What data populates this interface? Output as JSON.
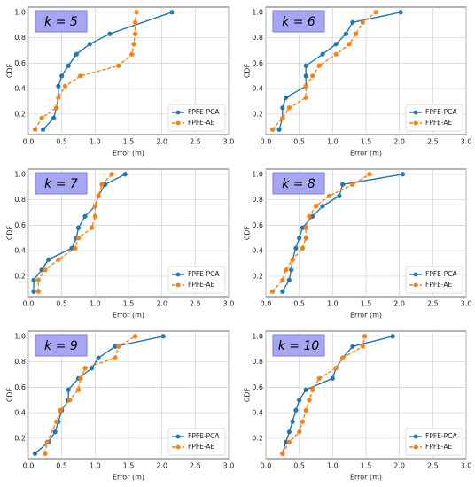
{
  "chart_data": [
    {
      "type": "line",
      "annotation": "k = 5",
      "xlabel": "Error (m)",
      "ylabel": "CDF",
      "xlim": [
        0,
        3.0
      ],
      "ylim": [
        0.04,
        1.04
      ],
      "xticks": [
        {
          "value": 0,
          "label": "0.0"
        },
        0.5,
        {
          "value": 1,
          "label": "1.0"
        },
        1.5,
        {
          "value": 2,
          "label": "2.0"
        },
        2.5,
        {
          "value": 3,
          "label": "3.0"
        }
      ],
      "yticks": [
        0.2,
        0.4,
        0.6,
        0.8,
        {
          "value": 1,
          "label": "1.0"
        }
      ],
      "grid": true,
      "legend": "lower right",
      "series": [
        {
          "name": "FPFE-PCA",
          "color": "#1f77b4",
          "linestyle": "solid",
          "x": [
            0.22,
            0.38,
            0.42,
            0.45,
            0.45,
            0.5,
            0.6,
            0.72,
            0.92,
            1.22,
            2.15
          ],
          "values": [
            0.08,
            0.17,
            0.25,
            0.33,
            0.42,
            0.5,
            0.58,
            0.67,
            0.75,
            0.83,
            1.0
          ]
        },
        {
          "name": "FPFE-AE",
          "color": "#ff7f0e",
          "linestyle": "dashed",
          "x": [
            0.1,
            0.2,
            0.42,
            0.45,
            0.55,
            0.78,
            1.35,
            1.55,
            1.58,
            1.6,
            1.6,
            1.62
          ],
          "values": [
            0.08,
            0.17,
            0.25,
            0.33,
            0.42,
            0.5,
            0.58,
            0.67,
            0.75,
            0.83,
            0.92,
            1.0
          ]
        }
      ]
    },
    {
      "type": "line",
      "annotation": "k = 6",
      "xlabel": "Error (m)",
      "ylabel": "CDF",
      "xlim": [
        0,
        3.0
      ],
      "ylim": [
        0.04,
        1.04
      ],
      "xticks": [
        {
          "value": 0,
          "label": "0.0"
        },
        0.5,
        {
          "value": 1,
          "label": "1.0"
        },
        1.5,
        {
          "value": 2,
          "label": "2.0"
        },
        2.5,
        {
          "value": 3,
          "label": "3.0"
        }
      ],
      "yticks": [
        0.2,
        0.4,
        0.6,
        0.8,
        {
          "value": 1,
          "label": "1.0"
        }
      ],
      "grid": true,
      "legend": "lower right",
      "series": [
        {
          "name": "FPFE-PCA",
          "color": "#1f77b4",
          "linestyle": "solid",
          "x": [
            0.2,
            0.25,
            0.25,
            0.3,
            0.6,
            0.6,
            0.6,
            0.85,
            1.05,
            1.2,
            1.3,
            2.02
          ],
          "values": [
            0.08,
            0.17,
            0.25,
            0.33,
            0.42,
            0.5,
            0.58,
            0.67,
            0.75,
            0.83,
            0.92,
            1.0
          ]
        },
        {
          "name": "FPFE-AE",
          "color": "#ff7f0e",
          "linestyle": "dashed",
          "x": [
            0.1,
            0.25,
            0.35,
            0.6,
            0.6,
            0.7,
            0.8,
            1.05,
            1.25,
            1.35,
            1.45,
            1.65
          ],
          "values": [
            0.08,
            0.17,
            0.25,
            0.33,
            0.42,
            0.5,
            0.58,
            0.67,
            0.75,
            0.83,
            0.92,
            1.0
          ]
        }
      ]
    },
    {
      "type": "line",
      "annotation": "k = 7",
      "xlabel": "Error (m)",
      "ylabel": "CDF",
      "xlim": [
        0,
        3.0
      ],
      "ylim": [
        0.04,
        1.04
      ],
      "xticks": [
        {
          "value": 0,
          "label": "0.0"
        },
        0.5,
        {
          "value": 1,
          "label": "1.0"
        },
        1.5,
        {
          "value": 2,
          "label": "2.0"
        },
        2.5,
        {
          "value": 3,
          "label": "3.0"
        }
      ],
      "yticks": [
        0.2,
        0.4,
        0.6,
        0.8,
        {
          "value": 1,
          "label": "1.0"
        }
      ],
      "grid": true,
      "legend": "lower right",
      "series": [
        {
          "name": "FPFE-PCA",
          "color": "#1f77b4",
          "linestyle": "solid",
          "x": [
            0.08,
            0.08,
            0.2,
            0.3,
            0.65,
            0.72,
            0.75,
            0.85,
            1.0,
            1.05,
            1.15,
            1.45
          ],
          "values": [
            0.08,
            0.17,
            0.25,
            0.33,
            0.42,
            0.5,
            0.58,
            0.67,
            0.75,
            0.83,
            0.92,
            1.0
          ]
        },
        {
          "name": "FPFE-AE",
          "color": "#ff7f0e",
          "linestyle": "dashed",
          "x": [
            0.15,
            0.15,
            0.25,
            0.45,
            0.7,
            0.75,
            0.95,
            1.0,
            1.0,
            1.05,
            1.1,
            1.25
          ],
          "values": [
            0.08,
            0.17,
            0.25,
            0.33,
            0.42,
            0.5,
            0.58,
            0.67,
            0.75,
            0.83,
            0.92,
            1.0
          ]
        }
      ]
    },
    {
      "type": "line",
      "annotation": "k = 8",
      "xlabel": "Error (m)",
      "ylabel": "CDF",
      "xlim": [
        0,
        3.0
      ],
      "ylim": [
        0.04,
        1.04
      ],
      "xticks": [
        {
          "value": 0,
          "label": "0.0"
        },
        0.5,
        {
          "value": 1,
          "label": "1.0"
        },
        1.5,
        {
          "value": 2,
          "label": "2.0"
        },
        2.5,
        {
          "value": 3,
          "label": "3.0"
        }
      ],
      "yticks": [
        0.2,
        0.4,
        0.6,
        0.8,
        {
          "value": 1,
          "label": "1.0"
        }
      ],
      "grid": true,
      "legend": "lower right",
      "series": [
        {
          "name": "FPFE-PCA",
          "color": "#1f77b4",
          "linestyle": "solid",
          "x": [
            0.25,
            0.35,
            0.38,
            0.4,
            0.45,
            0.5,
            0.55,
            0.7,
            0.85,
            1.1,
            1.15,
            2.05
          ],
          "values": [
            0.08,
            0.17,
            0.25,
            0.33,
            0.42,
            0.5,
            0.58,
            0.67,
            0.75,
            0.83,
            0.92,
            1.0
          ]
        },
        {
          "name": "FPFE-AE",
          "color": "#ff7f0e",
          "linestyle": "dashed",
          "x": [
            0.1,
            0.25,
            0.3,
            0.4,
            0.55,
            0.6,
            0.6,
            0.65,
            0.75,
            0.95,
            1.3,
            1.55
          ],
          "values": [
            0.08,
            0.17,
            0.25,
            0.33,
            0.42,
            0.5,
            0.58,
            0.67,
            0.75,
            0.83,
            0.92,
            1.0
          ]
        }
      ]
    },
    {
      "type": "line",
      "annotation": "k = 9",
      "xlabel": "Error (m)",
      "ylabel": "CDF",
      "xlim": [
        0,
        3.0
      ],
      "ylim": [
        0.04,
        1.04
      ],
      "xticks": [
        {
          "value": 0,
          "label": "0.0"
        },
        0.5,
        {
          "value": 1,
          "label": "1.0"
        },
        1.5,
        {
          "value": 2,
          "label": "2.0"
        },
        2.5,
        {
          "value": 3,
          "label": "3.0"
        }
      ],
      "yticks": [
        0.2,
        0.4,
        0.6,
        0.8,
        {
          "value": 1,
          "label": "1.0"
        }
      ],
      "grid": true,
      "legend": "lower right",
      "series": [
        {
          "name": "FPFE-PCA",
          "color": "#1f77b4",
          "linestyle": "solid",
          "x": [
            0.1,
            0.3,
            0.4,
            0.45,
            0.5,
            0.6,
            0.6,
            0.75,
            0.95,
            1.05,
            1.3,
            2.02
          ],
          "values": [
            0.08,
            0.17,
            0.25,
            0.33,
            0.42,
            0.5,
            0.58,
            0.67,
            0.75,
            0.83,
            0.92,
            1.0
          ]
        },
        {
          "name": "FPFE-AE",
          "color": "#ff7f0e",
          "linestyle": "dashed",
          "x": [
            0.25,
            0.28,
            0.42,
            0.48,
            0.62,
            0.75,
            0.78,
            0.85,
            1.3,
            1.35,
            1.6
          ],
          "values": [
            0.08,
            0.17,
            0.33,
            0.42,
            0.5,
            0.58,
            0.67,
            0.75,
            0.83,
            0.92,
            1.0
          ]
        }
      ]
    },
    {
      "type": "line",
      "annotation": "k = 10",
      "xlabel": "Error (m)",
      "ylabel": "CDF",
      "xlim": [
        0,
        3.0
      ],
      "ylim": [
        0.04,
        1.04
      ],
      "xticks": [
        {
          "value": 0,
          "label": "0.0"
        },
        0.5,
        {
          "value": 1,
          "label": "1.0"
        },
        1.5,
        {
          "value": 2,
          "label": "2.0"
        },
        2.5,
        {
          "value": 3,
          "label": "3.0"
        }
      ],
      "yticks": [
        0.2,
        0.4,
        0.6,
        0.8,
        {
          "value": 1,
          "label": "1.0"
        }
      ],
      "grid": true,
      "legend": "lower right",
      "series": [
        {
          "name": "FPFE-PCA",
          "color": "#1f77b4",
          "linestyle": "solid",
          "x": [
            0.25,
            0.3,
            0.35,
            0.4,
            0.45,
            0.5,
            0.6,
            1.0,
            1.05,
            1.15,
            1.3,
            1.9
          ],
          "values": [
            0.08,
            0.17,
            0.25,
            0.33,
            0.42,
            0.5,
            0.58,
            0.67,
            0.75,
            0.83,
            0.92,
            1.0
          ]
        },
        {
          "name": "FPFE-AE",
          "color": "#ff7f0e",
          "linestyle": "dashed",
          "x": [
            0.25,
            0.35,
            0.5,
            0.55,
            0.6,
            0.65,
            0.7,
            0.8,
            1.05,
            1.15,
            1.45,
            1.48
          ],
          "values": [
            0.08,
            0.17,
            0.25,
            0.33,
            0.42,
            0.5,
            0.58,
            0.67,
            0.75,
            0.83,
            0.92,
            1.0
          ]
        }
      ]
    }
  ]
}
